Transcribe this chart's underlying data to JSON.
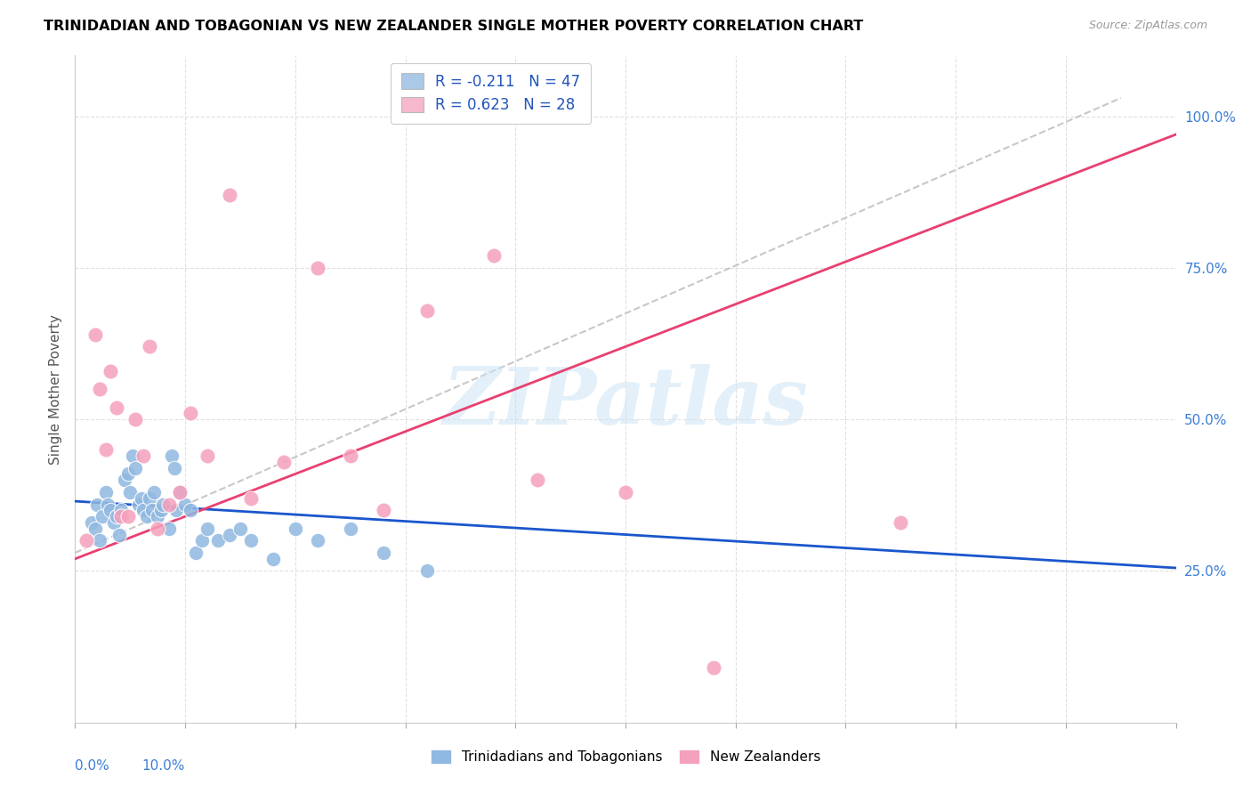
{
  "title": "TRINIDADIAN AND TOBAGONIAN VS NEW ZEALANDER SINGLE MOTHER POVERTY CORRELATION CHART",
  "source": "Source: ZipAtlas.com",
  "ylabel": "Single Mother Poverty",
  "ytick_labels": [
    "25.0%",
    "50.0%",
    "75.0%",
    "100.0%"
  ],
  "ytick_values": [
    25.0,
    50.0,
    75.0,
    100.0
  ],
  "xlim": [
    0.0,
    10.0
  ],
  "ylim": [
    0.0,
    110.0
  ],
  "legend_blue_label": "R = -0.211   N = 47",
  "legend_pink_label": "R = 0.623   N = 28",
  "legend_blue_color": "#aac8e8",
  "legend_pink_color": "#f5b8cc",
  "scatter_blue_color": "#90b8e0",
  "scatter_pink_color": "#f5a0bc",
  "trend_blue_color": "#1a56cc",
  "trend_pink_color": "#e84070",
  "ref_line_color": "#c8c8c8",
  "grid_color": "#e0e0e0",
  "watermark": "ZIPatlas",
  "blue_x": [
    0.15,
    0.18,
    0.2,
    0.22,
    0.25,
    0.28,
    0.3,
    0.32,
    0.35,
    0.38,
    0.4,
    0.42,
    0.45,
    0.48,
    0.5,
    0.52,
    0.55,
    0.58,
    0.6,
    0.62,
    0.65,
    0.68,
    0.7,
    0.72,
    0.75,
    0.78,
    0.8,
    0.85,
    0.88,
    0.9,
    0.92,
    0.95,
    1.0,
    1.05,
    1.1,
    1.15,
    1.2,
    1.3,
    1.4,
    1.5,
    1.6,
    1.8,
    2.0,
    2.2,
    2.5,
    2.8,
    3.2
  ],
  "blue_y": [
    33,
    32,
    36,
    30,
    34,
    38,
    36,
    35,
    33,
    34,
    31,
    35,
    40,
    41,
    38,
    44,
    42,
    36,
    37,
    35,
    34,
    37,
    35,
    38,
    34,
    35,
    36,
    32,
    44,
    42,
    35,
    38,
    36,
    35,
    28,
    30,
    32,
    30,
    31,
    32,
    30,
    27,
    32,
    30,
    32,
    28,
    25
  ],
  "pink_x": [
    0.1,
    0.18,
    0.22,
    0.28,
    0.32,
    0.38,
    0.42,
    0.48,
    0.55,
    0.62,
    0.68,
    0.75,
    0.85,
    0.95,
    1.05,
    1.2,
    1.4,
    1.6,
    1.9,
    2.2,
    2.5,
    2.8,
    3.2,
    3.8,
    4.2,
    5.0,
    5.8,
    7.5
  ],
  "pink_y": [
    30,
    64,
    55,
    45,
    58,
    52,
    34,
    34,
    50,
    44,
    62,
    32,
    36,
    38,
    51,
    44,
    87,
    37,
    43,
    75,
    44,
    35,
    68,
    77,
    40,
    38,
    9,
    33
  ],
  "blue_trend_x0": 0.0,
  "blue_trend_y0": 36.5,
  "blue_trend_x1": 10.0,
  "blue_trend_y1": 25.5,
  "pink_trend_x0": 0.0,
  "pink_trend_y0": 27.0,
  "pink_trend_x1": 10.0,
  "pink_trend_y1": 97.0,
  "ref_x0": 0.0,
  "ref_y0": 28.0,
  "ref_x1": 9.5,
  "ref_y1": 103.0
}
